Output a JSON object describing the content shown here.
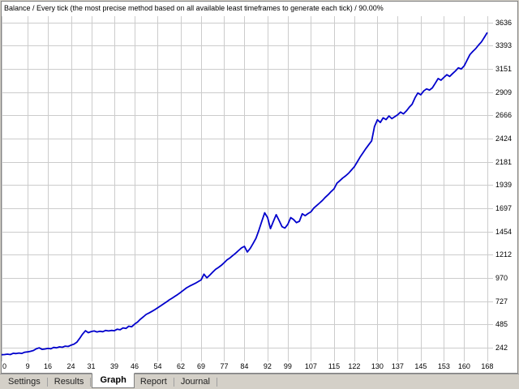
{
  "header": {
    "title": "Balance / Every tick (the most precise method based on all available least timeframes to generate each tick) / 90.00%"
  },
  "tabs": [
    {
      "label": "Settings",
      "active": false
    },
    {
      "label": "Results",
      "active": false
    },
    {
      "label": "Graph",
      "active": true
    },
    {
      "label": "Report",
      "active": false
    },
    {
      "label": "Journal",
      "active": false
    }
  ],
  "chart_data": {
    "type": "line",
    "title": "Balance",
    "series_name": "Balance",
    "line_color": "#0000cc",
    "grid_color": "#cccccc",
    "grid": true,
    "legend_position": "none",
    "xlabel": "",
    "ylabel": "",
    "x_ticks": [
      0,
      9,
      16,
      24,
      31,
      39,
      46,
      54,
      62,
      69,
      77,
      84,
      92,
      99,
      107,
      115,
      122,
      130,
      137,
      145,
      153,
      160,
      168
    ],
    "y_ticks": [
      242,
      485,
      727,
      970,
      1212,
      1454,
      1697,
      1939,
      2181,
      2424,
      2666,
      2909,
      3151,
      3393,
      3636
    ],
    "x_range": [
      0,
      170
    ],
    "y_range": [
      100,
      3700
    ],
    "points": [
      [
        0,
        170
      ],
      [
        1,
        172
      ],
      [
        2,
        176
      ],
      [
        3,
        172
      ],
      [
        4,
        185
      ],
      [
        5,
        182
      ],
      [
        6,
        188
      ],
      [
        7,
        184
      ],
      [
        8,
        196
      ],
      [
        9,
        200
      ],
      [
        10,
        206
      ],
      [
        11,
        214
      ],
      [
        12,
        232
      ],
      [
        13,
        242
      ],
      [
        14,
        226
      ],
      [
        15,
        230
      ],
      [
        16,
        236
      ],
      [
        17,
        232
      ],
      [
        18,
        246
      ],
      [
        19,
        242
      ],
      [
        20,
        252
      ],
      [
        21,
        248
      ],
      [
        22,
        260
      ],
      [
        23,
        256
      ],
      [
        24,
        270
      ],
      [
        25,
        280
      ],
      [
        26,
        300
      ],
      [
        27,
        340
      ],
      [
        28,
        385
      ],
      [
        29,
        420
      ],
      [
        30,
        400
      ],
      [
        31,
        412
      ],
      [
        32,
        418
      ],
      [
        33,
        408
      ],
      [
        34,
        414
      ],
      [
        35,
        410
      ],
      [
        36,
        424
      ],
      [
        37,
        418
      ],
      [
        38,
        424
      ],
      [
        39,
        420
      ],
      [
        40,
        436
      ],
      [
        41,
        430
      ],
      [
        42,
        450
      ],
      [
        43,
        444
      ],
      [
        44,
        468
      ],
      [
        45,
        462
      ],
      [
        46,
        490
      ],
      [
        47,
        510
      ],
      [
        48,
        540
      ],
      [
        49,
        565
      ],
      [
        50,
        590
      ],
      [
        51,
        605
      ],
      [
        52,
        622
      ],
      [
        53,
        640
      ],
      [
        54,
        660
      ],
      [
        55,
        680
      ],
      [
        56,
        700
      ],
      [
        57,
        720
      ],
      [
        58,
        742
      ],
      [
        59,
        760
      ],
      [
        60,
        780
      ],
      [
        61,
        800
      ],
      [
        62,
        822
      ],
      [
        63,
        845
      ],
      [
        64,
        868
      ],
      [
        65,
        885
      ],
      [
        66,
        900
      ],
      [
        67,
        915
      ],
      [
        68,
        932
      ],
      [
        69,
        950
      ],
      [
        70,
        1010
      ],
      [
        71,
        972
      ],
      [
        72,
        1000
      ],
      [
        73,
        1030
      ],
      [
        74,
        1060
      ],
      [
        75,
        1080
      ],
      [
        76,
        1102
      ],
      [
        77,
        1130
      ],
      [
        78,
        1160
      ],
      [
        79,
        1180
      ],
      [
        80,
        1205
      ],
      [
        81,
        1230
      ],
      [
        82,
        1258
      ],
      [
        83,
        1285
      ],
      [
        84,
        1300
      ],
      [
        85,
        1242
      ],
      [
        86,
        1280
      ],
      [
        87,
        1330
      ],
      [
        88,
        1385
      ],
      [
        89,
        1470
      ],
      [
        90,
        1560
      ],
      [
        91,
        1650
      ],
      [
        92,
        1600
      ],
      [
        93,
        1485
      ],
      [
        94,
        1560
      ],
      [
        95,
        1630
      ],
      [
        96,
        1570
      ],
      [
        97,
        1505
      ],
      [
        98,
        1490
      ],
      [
        99,
        1530
      ],
      [
        100,
        1600
      ],
      [
        101,
        1580
      ],
      [
        102,
        1548
      ],
      [
        103,
        1562
      ],
      [
        104,
        1640
      ],
      [
        105,
        1620
      ],
      [
        106,
        1642
      ],
      [
        107,
        1660
      ],
      [
        108,
        1700
      ],
      [
        109,
        1726
      ],
      [
        110,
        1752
      ],
      [
        111,
        1780
      ],
      [
        112,
        1812
      ],
      [
        113,
        1840
      ],
      [
        114,
        1872
      ],
      [
        115,
        1900
      ],
      [
        116,
        1958
      ],
      [
        117,
        1985
      ],
      [
        118,
        2012
      ],
      [
        119,
        2035
      ],
      [
        120,
        2062
      ],
      [
        121,
        2095
      ],
      [
        122,
        2130
      ],
      [
        123,
        2180
      ],
      [
        124,
        2230
      ],
      [
        125,
        2275
      ],
      [
        126,
        2320
      ],
      [
        127,
        2360
      ],
      [
        128,
        2400
      ],
      [
        129,
        2550
      ],
      [
        130,
        2620
      ],
      [
        131,
        2592
      ],
      [
        132,
        2640
      ],
      [
        133,
        2622
      ],
      [
        134,
        2660
      ],
      [
        135,
        2632
      ],
      [
        136,
        2652
      ],
      [
        137,
        2672
      ],
      [
        138,
        2700
      ],
      [
        139,
        2682
      ],
      [
        140,
        2712
      ],
      [
        141,
        2750
      ],
      [
        142,
        2782
      ],
      [
        143,
        2850
      ],
      [
        144,
        2900
      ],
      [
        145,
        2880
      ],
      [
        146,
        2920
      ],
      [
        147,
        2942
      ],
      [
        148,
        2930
      ],
      [
        149,
        2952
      ],
      [
        150,
        3000
      ],
      [
        151,
        3050
      ],
      [
        152,
        3032
      ],
      [
        153,
        3062
      ],
      [
        154,
        3090
      ],
      [
        155,
        3072
      ],
      [
        156,
        3102
      ],
      [
        157,
        3130
      ],
      [
        158,
        3162
      ],
      [
        159,
        3150
      ],
      [
        160,
        3182
      ],
      [
        161,
        3240
      ],
      [
        162,
        3300
      ],
      [
        163,
        3332
      ],
      [
        164,
        3362
      ],
      [
        165,
        3400
      ],
      [
        166,
        3432
      ],
      [
        167,
        3480
      ],
      [
        168,
        3530
      ]
    ]
  }
}
